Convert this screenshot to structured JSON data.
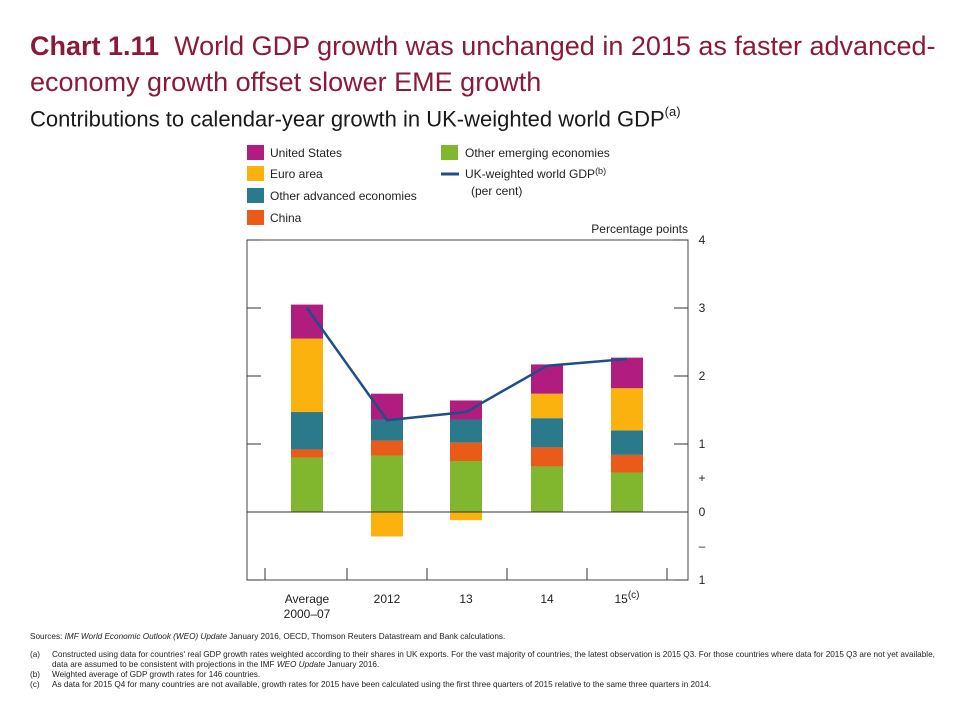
{
  "header": {
    "title_bold": "Chart 1.11",
    "title_rest": "World GDP growth was unchanged in 2015 as faster advanced-economy growth offset slower EME growth",
    "subtitle": "Contributions to calendar-year growth in UK-weighted world GDP",
    "subtitle_note": "(a)"
  },
  "legend": {
    "united_states": "United States",
    "euro_area": "Euro area",
    "other_advanced": "Other advanced economies",
    "china": "China",
    "other_emerging": "Other emerging economies",
    "gdp_line_label": "UK-weighted world GDP",
    "gdp_line_note": "(b)",
    "gdp_line_unit": "(per cent)"
  },
  "colors": {
    "united_states": "#b01d7f",
    "euro_area": "#fbb20f",
    "other_advanced": "#2b7a8b",
    "china": "#ea5a18",
    "other_emerging": "#80b72f",
    "gdp_line": "#1f4e88"
  },
  "chart_data": {
    "type": "bar",
    "stacked": true,
    "ylabel": "Percentage points",
    "ylim": [
      -1,
      4
    ],
    "y_ticks": [
      {
        "value": 4,
        "label": "4"
      },
      {
        "value": 3,
        "label": "3"
      },
      {
        "value": 2,
        "label": "2"
      },
      {
        "value": 1,
        "label": "1"
      },
      {
        "value": 0.5,
        "label": "+"
      },
      {
        "value": 0,
        "label": "0"
      },
      {
        "value": -0.5,
        "label": "–"
      },
      {
        "value": -1,
        "label": "1"
      }
    ],
    "categories": [
      "Average 2000–07",
      "2012",
      "13",
      "14",
      "15"
    ],
    "category_labels": [
      {
        "line1": "Average",
        "line2": "2000–07",
        "sup": ""
      },
      {
        "line1": "2012",
        "line2": "",
        "sup": ""
      },
      {
        "line1": "13",
        "line2": "",
        "sup": ""
      },
      {
        "line1": "14",
        "line2": "",
        "sup": ""
      },
      {
        "line1": "15",
        "line2": "",
        "sup": "(c)"
      }
    ],
    "series": [
      {
        "name": "Other emerging economies",
        "key": "other_emerging",
        "values": [
          0.8,
          0.83,
          0.75,
          0.67,
          0.58
        ]
      },
      {
        "name": "China",
        "key": "china",
        "values": [
          0.12,
          0.22,
          0.27,
          0.28,
          0.26
        ]
      },
      {
        "name": "Other advanced economies",
        "key": "other_advanced",
        "values": [
          0.55,
          0.31,
          0.34,
          0.43,
          0.36
        ]
      },
      {
        "name": "Euro area",
        "key": "euro_area",
        "values": [
          1.08,
          -0.36,
          -0.12,
          0.36,
          0.62
        ]
      },
      {
        "name": "United States",
        "key": "united_states",
        "values": [
          0.5,
          0.38,
          0.28,
          0.43,
          0.45
        ]
      }
    ],
    "line": {
      "name": "UK-weighted world GDP",
      "values": [
        3.0,
        1.35,
        1.47,
        2.15,
        2.25
      ]
    }
  },
  "notes": {
    "sources_label": "Sources:",
    "sources_italic": "IMF World Economic Outlook (WEO) Update",
    "sources_rest": "January 2016, OECD, Thomson Reuters Datastream and Bank calculations.",
    "a_label": "(a)",
    "a_text_1": "Constructed using data for countries' real GDP growth rates weighted according to their shares in UK exports. For the vast majority of countries, the latest observation is 2015 Q3. For those countries where data for 2015 Q3 are not yet available, data are assumed to be consistent with projections in the IMF",
    "a_italic": "WEO Update",
    "a_text_2": "January 2016.",
    "b_label": "(b)",
    "b_text": "Weighted average of GDP growth rates for 146 countries.",
    "c_label": "(c)",
    "c_text": "As data for 2015 Q4 for many countries are not available, growth rates for 2015 have been calculated using the first three quarters of 2015 relative to the same three quarters in 2014."
  }
}
